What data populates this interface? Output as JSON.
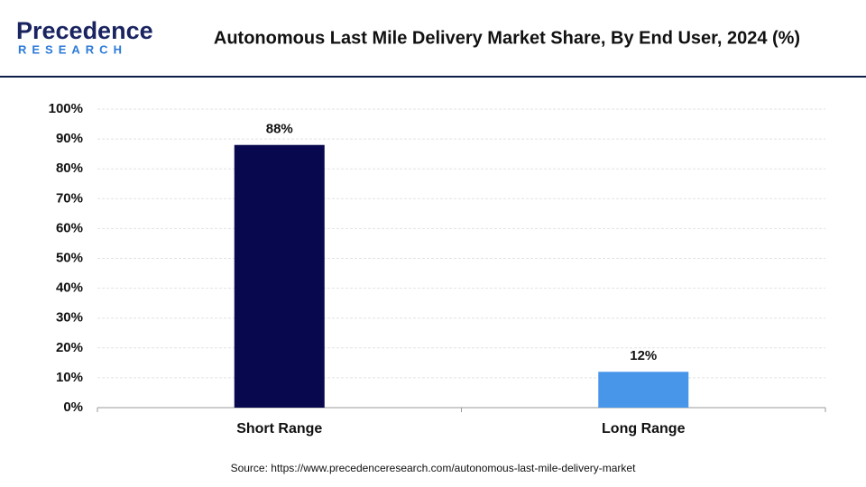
{
  "logo": {
    "name": "Precedence",
    "subname": "RESEARCH"
  },
  "chart_data": {
    "type": "bar",
    "title": "Autonomous Last Mile Delivery Market Share, By End User, 2024 (%)",
    "categories": [
      "Short Range",
      "Long Range"
    ],
    "series": [
      {
        "name": "Market Share",
        "colors": [
          "#07084d",
          "#4896ea"
        ],
        "values": [
          88,
          12
        ],
        "value_labels": [
          "88%",
          "12%"
        ]
      }
    ],
    "ylim": [
      0,
      100
    ],
    "yticks": [
      {
        "value": 0,
        "label": "0%"
      },
      {
        "value": 10,
        "label": "10%"
      },
      {
        "value": 20,
        "label": "20%"
      },
      {
        "value": 30,
        "label": "30%"
      },
      {
        "value": 40,
        "label": "40%"
      },
      {
        "value": 50,
        "label": "50%"
      },
      {
        "value": 60,
        "label": "60%"
      },
      {
        "value": 70,
        "label": "70%"
      },
      {
        "value": 80,
        "label": "80%"
      },
      {
        "value": 90,
        "label": "90%"
      },
      {
        "value": 100,
        "label": "100%"
      }
    ],
    "grid": true,
    "source": "Source: https://www.precedenceresearch.com/autonomous-last-mile-delivery-market"
  }
}
